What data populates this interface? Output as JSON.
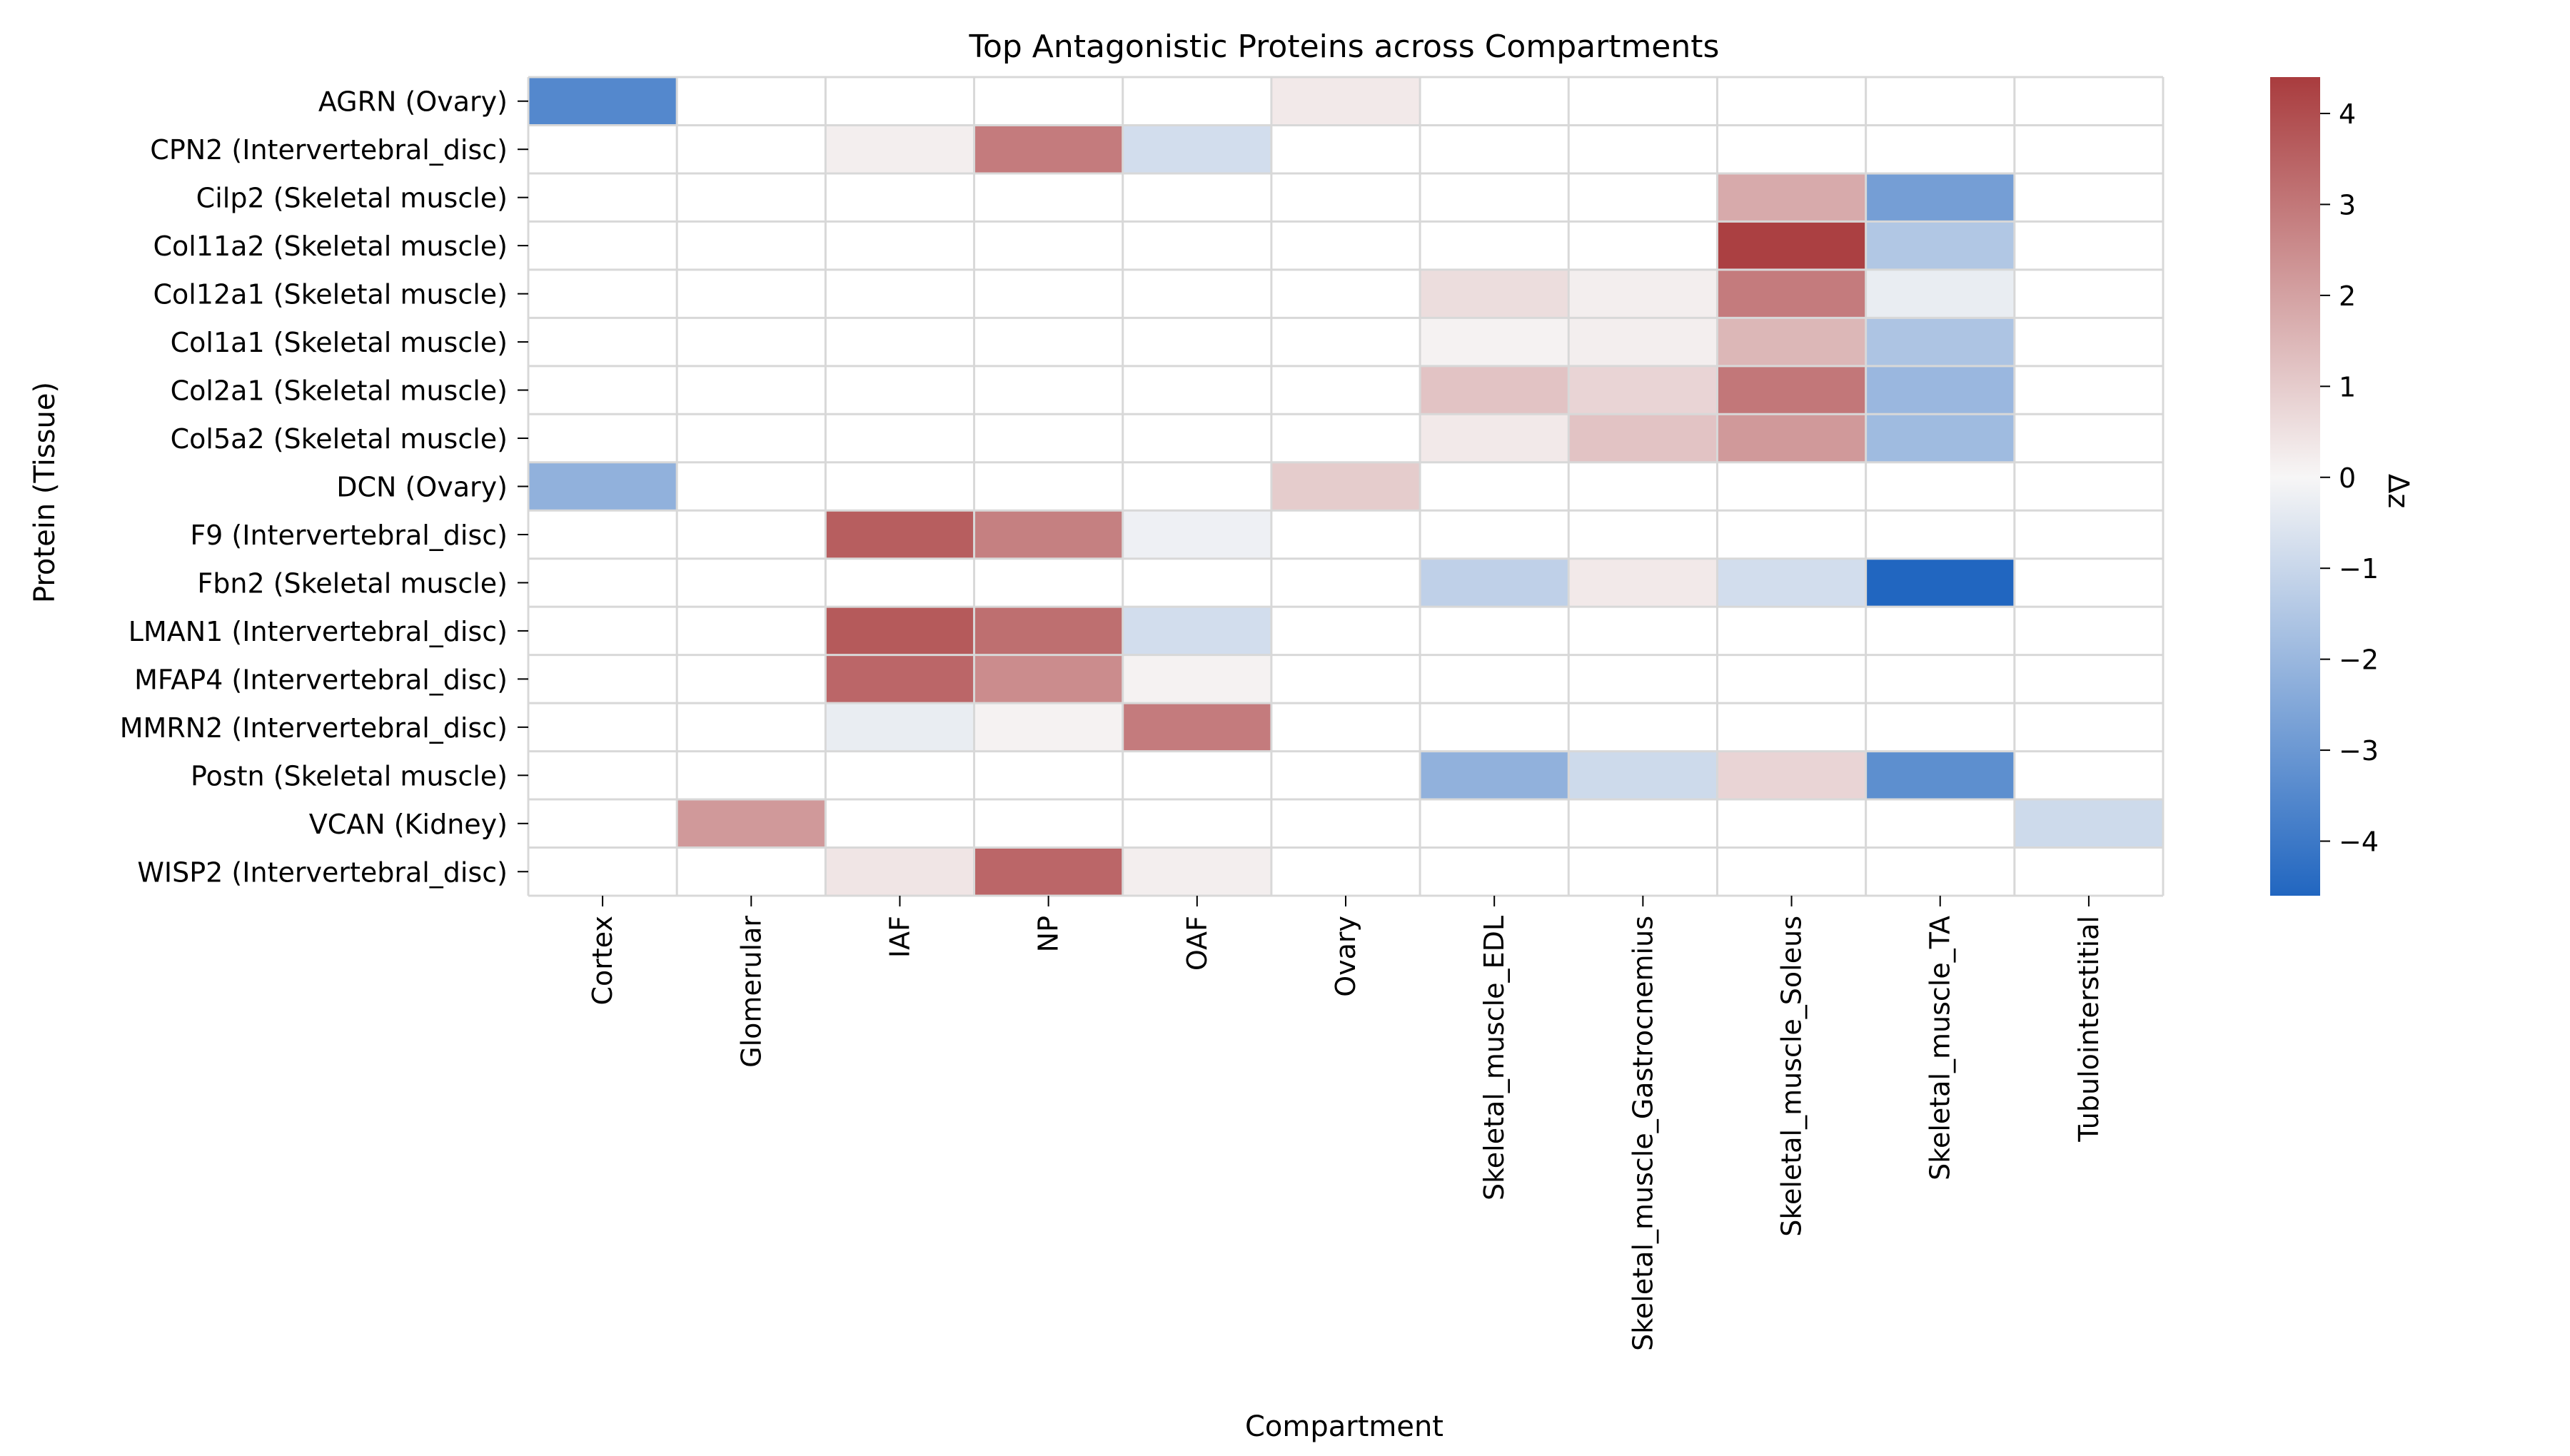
{
  "chart_data": {
    "type": "heatmap",
    "title": "Top Antagonistic Proteins across Compartments",
    "xlabel": "Compartment",
    "ylabel": "Protein (Tissue)",
    "x_categories": [
      "Cortex",
      "Glomerular",
      "IAF",
      "NP",
      "OAF",
      "Ovary",
      "Skeletal_muscle_EDL",
      "Skeletal_muscle_Gastrocnemius",
      "Skeletal_muscle_Soleus",
      "Skeletal_muscle_TA",
      "Tubulointerstitial"
    ],
    "y_categories": [
      "AGRN (Ovary)",
      "CPN2 (Intervertebral_disc)",
      "Cilp2 (Skeletal muscle)",
      "Col11a2 (Skeletal muscle)",
      "Col12a1 (Skeletal muscle)",
      "Col1a1 (Skeletal muscle)",
      "Col2a1 (Skeletal muscle)",
      "Col5a2 (Skeletal muscle)",
      "DCN (Ovary)",
      "F9 (Intervertebral_disc)",
      "Fbn2 (Skeletal muscle)",
      "LMAN1 (Intervertebral_disc)",
      "MFAP4 (Intervertebral_disc)",
      "MMRN2 (Intervertebral_disc)",
      "Postn (Skeletal muscle)",
      "VCAN (Kidney)",
      "WISP2 (Intervertebral_disc)"
    ],
    "values": [
      [
        -3.5,
        null,
        null,
        null,
        null,
        0.3,
        null,
        null,
        null,
        null,
        null
      ],
      [
        null,
        null,
        0.2,
        2.9,
        -0.8,
        null,
        null,
        null,
        null,
        null,
        null
      ],
      [
        null,
        null,
        null,
        null,
        null,
        null,
        null,
        null,
        1.8,
        -2.8,
        null
      ],
      [
        null,
        null,
        null,
        null,
        null,
        null,
        null,
        null,
        4.3,
        -1.5,
        null
      ],
      [
        null,
        null,
        null,
        null,
        null,
        null,
        0.6,
        0.2,
        2.9,
        -0.3,
        null
      ],
      [
        null,
        null,
        null,
        null,
        null,
        null,
        0.1,
        0.2,
        1.5,
        -1.6,
        null
      ],
      [
        null,
        null,
        null,
        null,
        null,
        null,
        1.2,
        0.8,
        3.0,
        -2.0,
        null
      ],
      [
        null,
        null,
        null,
        null,
        null,
        null,
        0.3,
        1.2,
        2.2,
        -1.9,
        null
      ],
      [
        -2.2,
        null,
        null,
        null,
        null,
        1.0,
        null,
        null,
        null,
        null,
        null
      ],
      [
        null,
        null,
        3.6,
        2.8,
        -0.2,
        null,
        null,
        null,
        null,
        null,
        null
      ],
      [
        null,
        null,
        null,
        null,
        null,
        null,
        -1.2,
        0.3,
        -0.8,
        -4.6,
        null
      ],
      [
        null,
        null,
        3.7,
        3.2,
        -0.8,
        null,
        null,
        null,
        null,
        null,
        null
      ],
      [
        null,
        null,
        3.4,
        2.5,
        0.1,
        null,
        null,
        null,
        null,
        null,
        null
      ],
      [
        null,
        null,
        -0.3,
        0.1,
        2.9,
        null,
        null,
        null,
        null,
        null,
        null
      ],
      [
        null,
        null,
        null,
        null,
        null,
        null,
        -2.2,
        -0.9,
        0.8,
        -3.3,
        null
      ],
      [
        null,
        2.2,
        null,
        null,
        null,
        null,
        null,
        null,
        null,
        null,
        -0.9
      ],
      [
        null,
        null,
        0.4,
        3.4,
        0.2,
        null,
        null,
        null,
        null,
        null,
        null
      ]
    ],
    "colorbar": {
      "label": "Δz",
      "vmin": -4.6,
      "vmax": 4.4,
      "ticks": [
        4,
        3,
        2,
        1,
        0,
        -1,
        -2,
        -3,
        -4
      ]
    },
    "colormap": {
      "low": "#2166c0",
      "mid": "#f7f6f6",
      "high": "#a93c3e"
    },
    "grid": true,
    "grid_color": "#d8d8d8"
  }
}
